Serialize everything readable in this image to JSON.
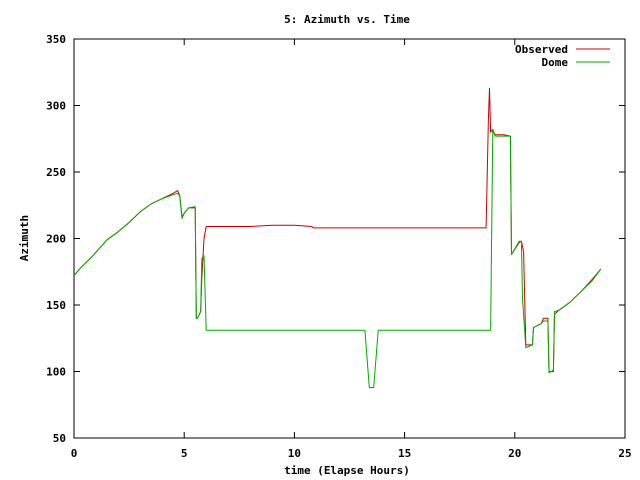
{
  "chart_data": {
    "type": "line",
    "title": "5: Azimuth vs. Time",
    "xlabel": "time (Elapse Hours)",
    "ylabel": "Azimuth",
    "xlim": [
      0,
      25
    ],
    "ylim": [
      50,
      350
    ],
    "xticks": [
      0,
      5,
      10,
      15,
      20,
      25
    ],
    "yticks": [
      50,
      100,
      150,
      200,
      250,
      300,
      350
    ],
    "grid": false,
    "legend_position": "top-right",
    "series": [
      {
        "name": "Observed",
        "color": "#cc0000",
        "x": [
          0,
          0.3,
          0.8,
          1.5,
          2.0,
          2.5,
          3.0,
          3.5,
          4.0,
          4.5,
          4.7,
          4.8,
          4.9,
          5.0,
          5.2,
          5.5,
          5.55,
          5.6,
          5.75,
          5.8,
          5.9,
          6.0,
          6.1,
          7.0,
          8.0,
          9.0,
          10.0,
          10.8,
          10.85,
          12.0,
          14.0,
          16.0,
          18.0,
          18.7,
          18.8,
          18.85,
          18.9,
          19.0,
          19.1,
          19.5,
          19.8,
          19.85,
          20.2,
          20.3,
          20.4,
          20.5,
          20.8,
          20.85,
          21.2,
          21.3,
          21.5,
          21.55,
          21.75,
          21.8,
          22.0,
          22.5,
          23.0,
          23.5,
          23.9
        ],
        "values": [
          172,
          178,
          186,
          199,
          205,
          212,
          220,
          226,
          230,
          234,
          236,
          232,
          216,
          219,
          223,
          223,
          140,
          140,
          145,
          170,
          200,
          209,
          209,
          209,
          209,
          210,
          210,
          209,
          208,
          208,
          208,
          208,
          208,
          208,
          290,
          313,
          280,
          282,
          278,
          278,
          277,
          188,
          197,
          198,
          190,
          120,
          120,
          133,
          136,
          140,
          140,
          100,
          100,
          143,
          146,
          152,
          160,
          169,
          177
        ]
      },
      {
        "name": "Dome",
        "color": "#00aa00",
        "x": [
          0,
          0.3,
          0.8,
          1.5,
          2.0,
          2.5,
          3.0,
          3.5,
          4.0,
          4.5,
          4.7,
          4.8,
          4.9,
          5.0,
          5.2,
          5.5,
          5.55,
          5.6,
          5.75,
          5.8,
          5.9,
          6.0,
          6.05,
          7.0,
          9.0,
          11.0,
          13.0,
          13.2,
          13.4,
          13.6,
          13.8,
          14.0,
          16.0,
          18.0,
          18.8,
          18.9,
          19.0,
          19.1,
          19.5,
          19.8,
          19.85,
          20.2,
          20.3,
          20.35,
          20.5,
          20.8,
          20.85,
          21.2,
          21.3,
          21.5,
          21.55,
          21.75,
          21.8,
          22.0,
          22.5,
          23.0,
          23.5,
          23.9
        ],
        "values": [
          172,
          178,
          186,
          199,
          205,
          212,
          220,
          226,
          230,
          233,
          234,
          232,
          215,
          219,
          223,
          224,
          140,
          140,
          145,
          185,
          187,
          131,
          131,
          131,
          131,
          131,
          131,
          131,
          88,
          88,
          131,
          131,
          131,
          131,
          131,
          131,
          282,
          277,
          277,
          277,
          188,
          198,
          198,
          155,
          118,
          120,
          133,
          136,
          138,
          138,
          99,
          101,
          145,
          146,
          152,
          160,
          168,
          177
        ]
      }
    ]
  }
}
